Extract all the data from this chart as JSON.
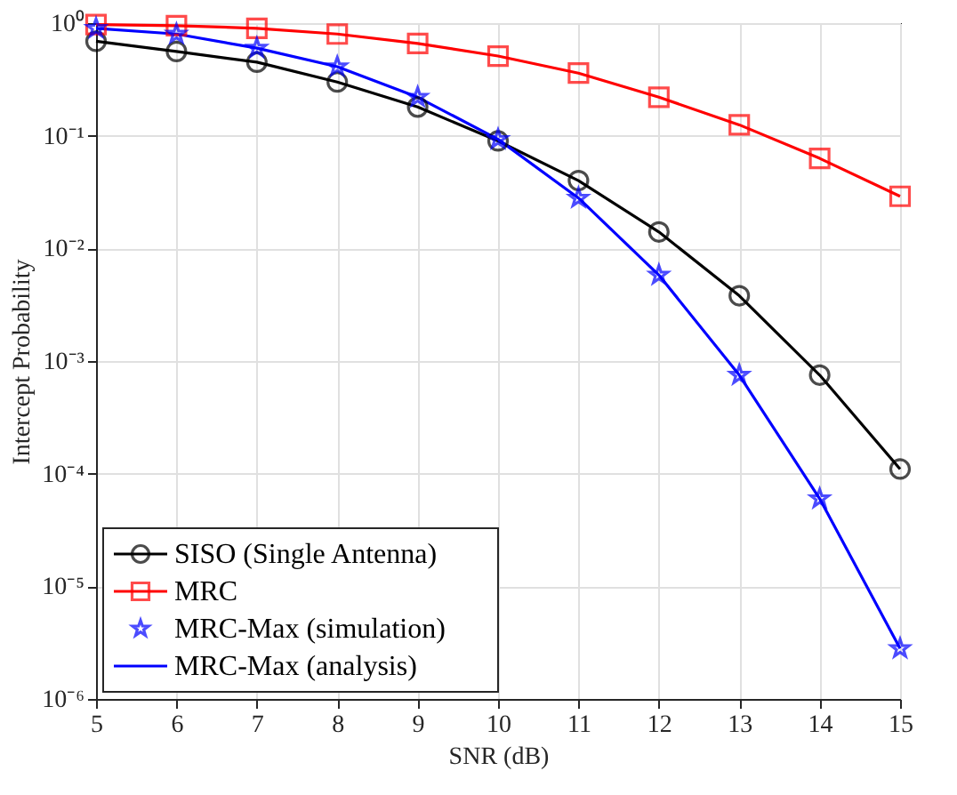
{
  "chart_data": {
    "type": "line",
    "xlabel": "SNR (dB)",
    "ylabel": "Intercept Probability",
    "log": "y",
    "x": [
      5,
      6,
      7,
      8,
      9,
      10,
      11,
      12,
      13,
      14,
      15
    ],
    "xlim": [
      5,
      15
    ],
    "xticks": [
      5,
      6,
      7,
      8,
      9,
      10,
      11,
      12,
      13,
      14,
      15
    ],
    "ylim": [
      1e-06,
      1
    ],
    "yticks": [
      {
        "value": 1e-06,
        "label": "10⁻⁶"
      },
      {
        "value": 1e-05,
        "label": "10⁻⁵"
      },
      {
        "value": 0.0001,
        "label": "10⁻⁴"
      },
      {
        "value": 0.001,
        "label": "10⁻³"
      },
      {
        "value": 0.01,
        "label": "10⁻²"
      },
      {
        "value": 0.1,
        "label": "10⁻¹"
      },
      {
        "value": 1,
        "label": "10⁰"
      }
    ],
    "grid": true,
    "legend": "bottom left",
    "series": [
      {
        "name": "SISO (Single Antenna)",
        "color": "#000000",
        "marker": "circle",
        "values": [
          0.69,
          0.56,
          0.45,
          0.3,
          0.18,
          0.09,
          0.04,
          0.014,
          0.0038,
          0.00075,
          0.00011
        ]
      },
      {
        "name": "MRC",
        "color": "#ff0000",
        "marker": "square",
        "values": [
          0.97,
          0.95,
          0.9,
          0.8,
          0.66,
          0.51,
          0.36,
          0.22,
          0.125,
          0.063,
          0.029
        ]
      },
      {
        "name": "MRC-Max (simulation)",
        "type": "scatter",
        "color": "#0000ff",
        "marker": "star",
        "values": [
          0.9,
          0.8,
          0.6,
          0.41,
          0.22,
          0.093,
          0.028,
          0.0058,
          0.00075,
          6e-05,
          2.8e-06
        ]
      },
      {
        "name": "MRC-Max (analysis)",
        "color": "#0000ff",
        "marker": "none",
        "values": [
          0.9,
          0.8,
          0.6,
          0.41,
          0.22,
          0.093,
          0.028,
          0.0058,
          0.00075,
          6e-05,
          2.8e-06
        ]
      }
    ]
  }
}
